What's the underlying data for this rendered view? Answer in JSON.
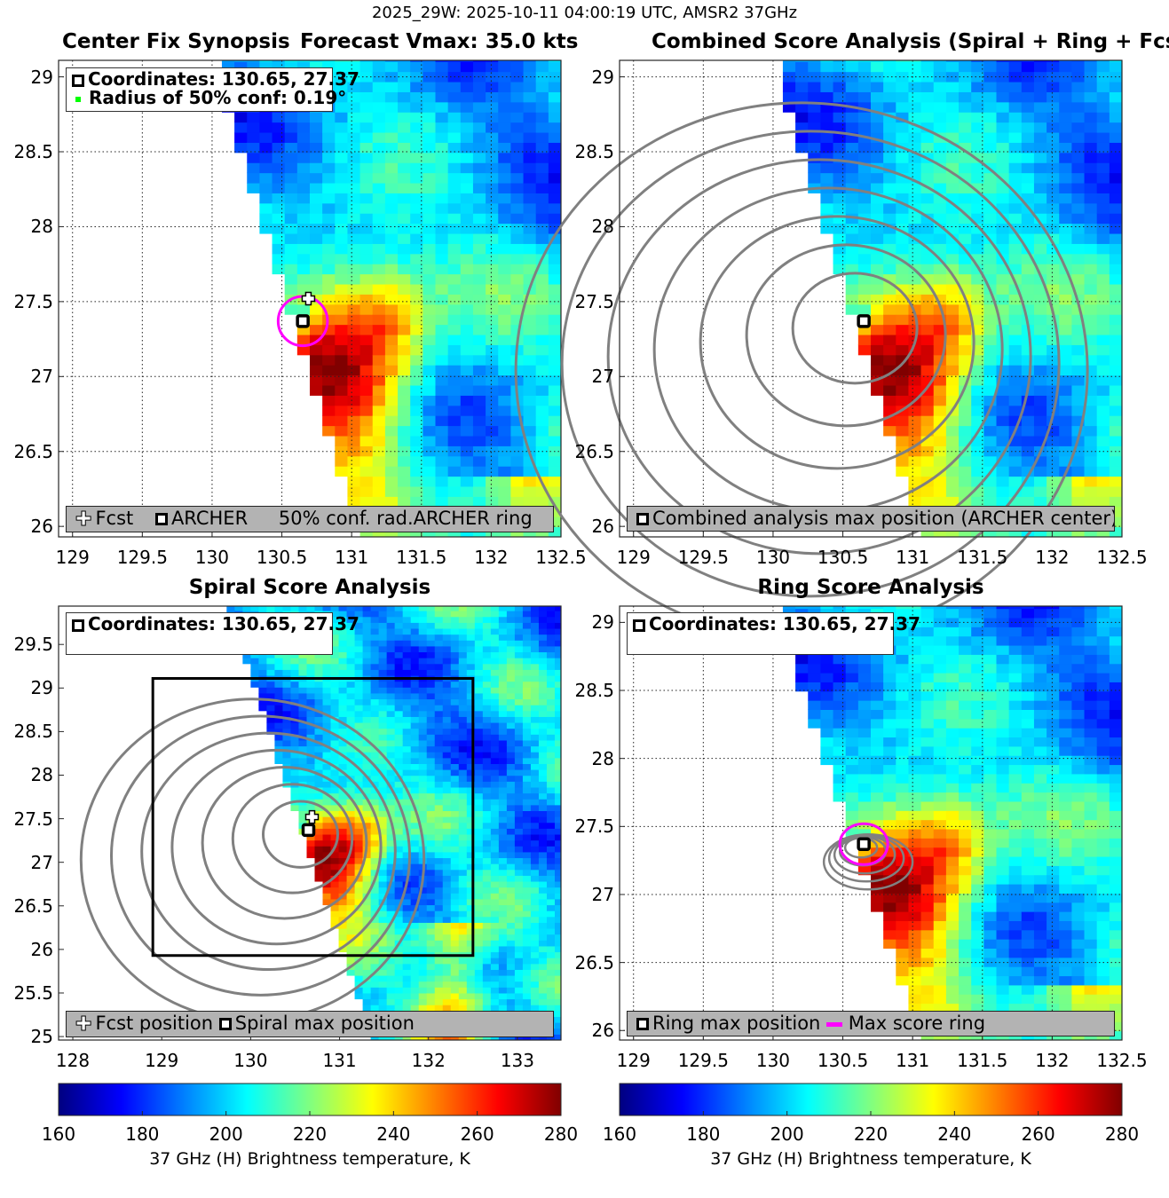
{
  "figure_title": "2025_29W: 2025-10-11 04:00:19 UTC, AMSR2 37GHz",
  "chart_data": [
    {
      "type": "heatmap",
      "title": "Center Fix Synopsis",
      "title_right": "Forecast Vmax: 35.0 kts",
      "xlim": [
        128.9,
        132.5
      ],
      "ylim": [
        25.93,
        29.11
      ],
      "xticks": [
        "129",
        "129.5",
        "130",
        "130.5",
        "131",
        "131.5",
        "132",
        "132.5"
      ],
      "yticks": [
        "26",
        "26.5",
        "27",
        "27.5",
        "28",
        "28.5",
        "29"
      ],
      "grid": true,
      "info": [
        "Coordinates: 130.65, 27.37",
        "Radius of 50% conf: 0.19°"
      ],
      "legend": {
        "fcst": "Fcst",
        "archer": "ARCHER",
        "conf": "50% conf. rad.",
        "ring": "ARCHER ring"
      },
      "archer_center": [
        130.65,
        27.37
      ],
      "fcst_position": [
        130.69,
        27.52
      ],
      "conf_radius_deg": 0.19
    },
    {
      "type": "heatmap",
      "title": "Combined Score Analysis (Spiral + Ring + Fcst_Pe",
      "xlim": [
        128.9,
        132.5
      ],
      "ylim": [
        25.93,
        29.11
      ],
      "xticks": [
        "129",
        "129.5",
        "130",
        "130.5",
        "131",
        "131.5",
        "132",
        "132.5"
      ],
      "yticks": [
        "26",
        "26.5",
        "27",
        "27.5",
        "28",
        "28.5",
        "29"
      ],
      "grid": true,
      "legend": {
        "max": "Combined analysis max position (ARCHER center)"
      },
      "archer_center": [
        130.65,
        27.37
      ]
    },
    {
      "type": "heatmap",
      "title": "Spiral Score Analysis",
      "xlim": [
        127.84,
        133.49
      ],
      "ylim": [
        24.96,
        29.94
      ],
      "xticks": [
        "128",
        "129",
        "130",
        "131",
        "132",
        "133"
      ],
      "yticks": [
        "25",
        "25.5",
        "26",
        "26.5",
        "27",
        "27.5",
        "28",
        "28.5",
        "29",
        "29.5"
      ],
      "grid": false,
      "info": [
        "Coordinates: 130.65, 27.37"
      ],
      "legend": {
        "fcst": "Fcst position",
        "max": "Spiral max position"
      },
      "archer_center": [
        130.65,
        27.37
      ],
      "fcst_position": [
        130.69,
        27.52
      ]
    },
    {
      "type": "heatmap",
      "title": "Ring Score Analysis",
      "xlim": [
        128.9,
        132.5
      ],
      "ylim": [
        25.93,
        29.12
      ],
      "xticks": [
        "129",
        "129.5",
        "130",
        "130.5",
        "131",
        "131.5",
        "132",
        "132.5"
      ],
      "yticks": [
        "26",
        "26.5",
        "27",
        "27.5",
        "28",
        "28.5",
        "29"
      ],
      "grid": true,
      "info": [
        "Coordinates: 130.65, 27.37"
      ],
      "legend": {
        "max": "Ring max position",
        "ring": "Max score ring"
      },
      "archer_center": [
        130.65,
        27.37
      ]
    }
  ],
  "colorbar": {
    "colormap": "jet",
    "range": [
      160,
      280
    ],
    "ticks": [
      "160",
      "180",
      "200",
      "220",
      "240",
      "260",
      "280"
    ],
    "label": "37 GHz (H) Brightness temperature, K"
  },
  "colors": {
    "ring": "#ff00ff",
    "contour": "#808080",
    "legend_bg": "#b3b3b3"
  }
}
